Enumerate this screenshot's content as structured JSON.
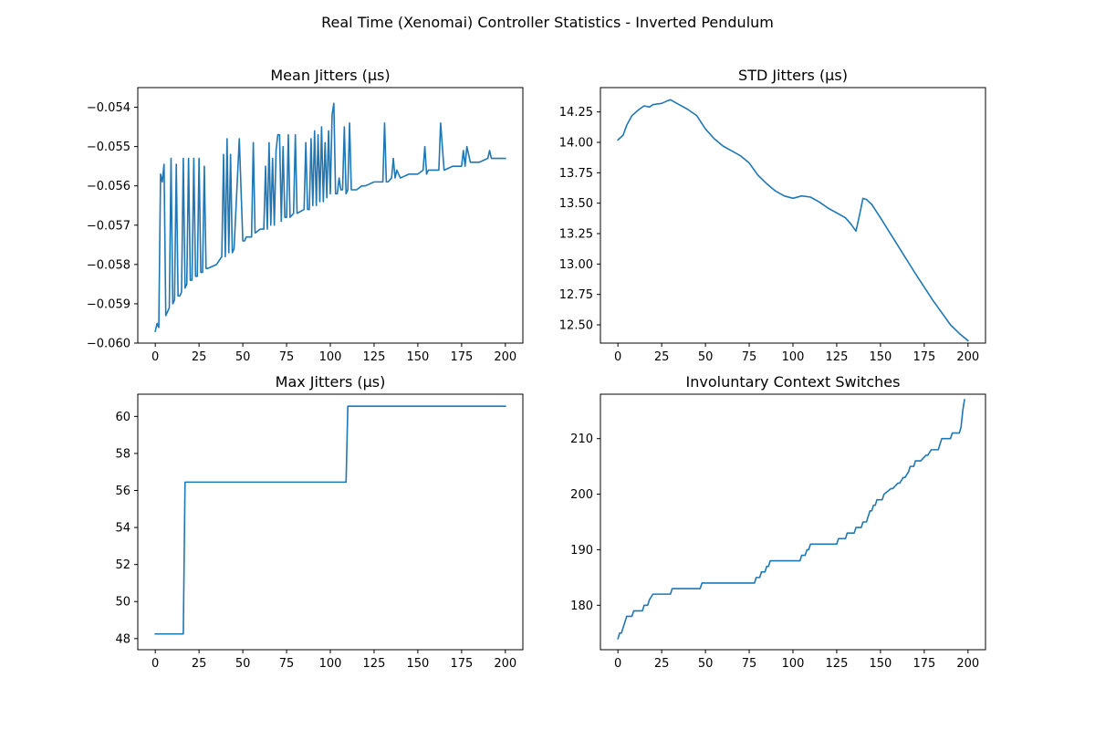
{
  "figure_title": "Real Time (Xenomai) Controller Statistics - Inverted Pendulum",
  "line_color": "#1f77b4",
  "chart_data": [
    {
      "type": "line",
      "title": "Mean Jitters (μs)",
      "xlim": [
        -10,
        210
      ],
      "ylim": [
        -0.06,
        -0.0535
      ],
      "xticks": [
        0,
        25,
        50,
        75,
        100,
        125,
        150,
        175,
        200
      ],
      "xtick_labels": [
        "0",
        "25",
        "50",
        "75",
        "100",
        "125",
        "150",
        "175",
        "200"
      ],
      "yticks": [
        -0.06,
        -0.059,
        -0.058,
        -0.057,
        -0.056,
        -0.055,
        -0.054
      ],
      "ytick_labels": [
        "−0.060",
        "−0.059",
        "−0.058",
        "−0.057",
        "−0.056",
        "−0.055",
        "−0.054"
      ],
      "series": [
        {
          "x": [
            0,
            1,
            2,
            3,
            4,
            5,
            6,
            7,
            8,
            9,
            10,
            11,
            12,
            13,
            14,
            15,
            16,
            17,
            18,
            19,
            20,
            21,
            22,
            23,
            24,
            25,
            26,
            27,
            28,
            29,
            30,
            35,
            38,
            39,
            40,
            41,
            42,
            43,
            44,
            45,
            48,
            50,
            51,
            52,
            53,
            54,
            55,
            56,
            57,
            60,
            62,
            63,
            64,
            65,
            66,
            67,
            68,
            69,
            70,
            71,
            72,
            73,
            74,
            75,
            76,
            77,
            79,
            80,
            81,
            85,
            86,
            87,
            88,
            89,
            90,
            91,
            92,
            93,
            94,
            95,
            96,
            97,
            98,
            99,
            100,
            101,
            102,
            103,
            104,
            105,
            106,
            107,
            108,
            109,
            110,
            111,
            112,
            113,
            115,
            118,
            120,
            125,
            130,
            131,
            132,
            133,
            135,
            136,
            137,
            138,
            140,
            145,
            147,
            148,
            150,
            153,
            154,
            155,
            156,
            160,
            162,
            163,
            165,
            170,
            175,
            176,
            177,
            178,
            180,
            185,
            190,
            191,
            192,
            195,
            200
          ],
          "y": [
            -0.0597,
            -0.0595,
            -0.0596,
            -0.0557,
            -0.0559,
            -0.05545,
            -0.0593,
            -0.0592,
            -0.0591,
            -0.0553,
            -0.059,
            -0.0589,
            -0.05545,
            -0.0588,
            -0.0588,
            -0.0587,
            -0.0553,
            -0.0586,
            -0.0585,
            -0.0553,
            -0.0584,
            -0.0584,
            -0.0553,
            -0.0583,
            -0.0583,
            -0.0553,
            -0.0582,
            -0.0582,
            -0.0555,
            -0.0581,
            -0.0581,
            -0.058,
            -0.0578,
            -0.0552,
            -0.0578,
            -0.0548,
            -0.0577,
            -0.0552,
            -0.0577,
            -0.0576,
            -0.0548,
            -0.0574,
            -0.0574,
            -0.0573,
            -0.0573,
            -0.0573,
            -0.0573,
            -0.0549,
            -0.0572,
            -0.0571,
            -0.0571,
            -0.0555,
            -0.0571,
            -0.0549,
            -0.057,
            -0.0553,
            -0.057,
            -0.0551,
            -0.0547,
            -0.0547,
            -0.0569,
            -0.055,
            -0.0568,
            -0.0568,
            -0.0547,
            -0.0568,
            -0.0567,
            -0.0547,
            -0.0567,
            -0.0566,
            -0.0549,
            -0.0566,
            -0.0566,
            -0.0548,
            -0.0565,
            -0.0546,
            -0.0565,
            -0.0547,
            -0.0564,
            -0.0545,
            -0.0564,
            -0.0549,
            -0.0563,
            -0.0546,
            -0.0562,
            -0.0542,
            -0.0539,
            -0.0562,
            -0.0562,
            -0.0558,
            -0.0561,
            -0.0561,
            -0.0545,
            -0.0562,
            -0.0561,
            -0.0544,
            -0.0561,
            -0.0561,
            -0.0561,
            -0.056,
            -0.056,
            -0.0559,
            -0.0559,
            -0.0544,
            -0.0559,
            -0.0559,
            -0.0558,
            -0.0553,
            -0.0558,
            -0.0556,
            -0.0558,
            -0.0557,
            -0.0557,
            -0.0557,
            -0.0557,
            -0.0556,
            -0.055,
            -0.0557,
            -0.0556,
            -0.0556,
            -0.0556,
            -0.0544,
            -0.0556,
            -0.0555,
            -0.0555,
            -0.0551,
            -0.0555,
            -0.055,
            -0.0554,
            -0.0554,
            -0.0553,
            -0.0551,
            -0.0553,
            -0.0553,
            -0.0553
          ]
        }
      ]
    },
    {
      "type": "line",
      "title": "STD Jitters (μs)",
      "xlim": [
        -10,
        210
      ],
      "ylim": [
        12.35,
        14.45
      ],
      "xticks": [
        0,
        25,
        50,
        75,
        100,
        125,
        150,
        175,
        200
      ],
      "xtick_labels": [
        "0",
        "25",
        "50",
        "75",
        "100",
        "125",
        "150",
        "175",
        "200"
      ],
      "yticks": [
        12.5,
        12.75,
        13.0,
        13.25,
        13.5,
        13.75,
        14.0,
        14.25
      ],
      "ytick_labels": [
        "12.50",
        "12.75",
        "13.00",
        "13.25",
        "13.50",
        "13.75",
        "14.00",
        "14.25"
      ],
      "series": [
        {
          "x": [
            0,
            3,
            5,
            8,
            12,
            15,
            18,
            20,
            25,
            28,
            30,
            35,
            40,
            45,
            50,
            55,
            60,
            65,
            70,
            75,
            80,
            85,
            90,
            95,
            100,
            105,
            110,
            115,
            120,
            125,
            130,
            133,
            136,
            138,
            140,
            142,
            145,
            150,
            160,
            170,
            180,
            190,
            195,
            200
          ],
          "y": [
            14.02,
            14.06,
            14.14,
            14.22,
            14.27,
            14.3,
            14.29,
            14.31,
            14.32,
            14.34,
            14.35,
            14.31,
            14.27,
            14.22,
            14.11,
            14.03,
            13.97,
            13.93,
            13.89,
            13.83,
            13.73,
            13.66,
            13.6,
            13.56,
            13.54,
            13.56,
            13.55,
            13.51,
            13.46,
            13.42,
            13.38,
            13.33,
            13.27,
            13.4,
            13.54,
            13.53,
            13.49,
            13.38,
            13.15,
            12.92,
            12.7,
            12.5,
            12.43,
            12.37
          ]
        }
      ]
    },
    {
      "type": "line",
      "title": "Max Jitters (μs)",
      "xlim": [
        -10,
        210
      ],
      "ylim": [
        47.4,
        61.2
      ],
      "xticks": [
        0,
        25,
        50,
        75,
        100,
        125,
        150,
        175,
        200
      ],
      "xtick_labels": [
        "0",
        "25",
        "50",
        "75",
        "100",
        "125",
        "150",
        "175",
        "200"
      ],
      "yticks": [
        48,
        50,
        52,
        54,
        56,
        58,
        60
      ],
      "ytick_labels": [
        "48",
        "50",
        "52",
        "54",
        "56",
        "58",
        "60"
      ],
      "series": [
        {
          "x": [
            0,
            16,
            17,
            109,
            110,
            200
          ],
          "y": [
            48.25,
            48.25,
            56.45,
            56.45,
            60.55,
            60.55
          ]
        }
      ]
    },
    {
      "type": "line",
      "title": "Involuntary Context Switches",
      "xlim": [
        -10,
        210
      ],
      "ylim": [
        172,
        218
      ],
      "xticks": [
        0,
        25,
        50,
        75,
        100,
        125,
        150,
        175,
        200
      ],
      "xtick_labels": [
        "0",
        "25",
        "50",
        "75",
        "100",
        "125",
        "150",
        "175",
        "200"
      ],
      "yticks": [
        180,
        190,
        200,
        210
      ],
      "ytick_labels": [
        "180",
        "190",
        "200",
        "210"
      ],
      "series": [
        {
          "x": [
            0,
            1,
            2,
            3,
            4,
            5,
            8,
            9,
            14,
            15,
            17,
            18,
            20,
            21,
            30,
            31,
            47,
            48,
            78,
            79,
            81,
            82,
            84,
            85,
            86,
            87,
            88,
            89,
            104,
            105,
            107,
            108,
            109,
            110,
            125,
            126,
            130,
            131,
            135,
            136,
            139,
            140,
            142,
            143,
            144,
            145,
            146,
            147,
            148,
            149,
            151,
            152,
            156,
            157,
            160,
            161,
            163,
            164,
            166,
            167,
            169,
            170,
            172,
            173,
            176,
            177,
            179,
            180,
            183,
            184,
            185,
            186,
            187,
            190,
            191,
            194,
            195,
            196,
            197,
            198
          ],
          "y": [
            174,
            175,
            175,
            176,
            177,
            178,
            178,
            179,
            179,
            180,
            180,
            181,
            182,
            182,
            182,
            183,
            183,
            184,
            184,
            185,
            185,
            186,
            186,
            187,
            187,
            188,
            188,
            188,
            188,
            189,
            189,
            190,
            190,
            191,
            191,
            192,
            192,
            193,
            193,
            194,
            194,
            195,
            195,
            196,
            197,
            197,
            198,
            198,
            199,
            199,
            199,
            200,
            201,
            201,
            202,
            202,
            203,
            203,
            204,
            205,
            205,
            206,
            206,
            206,
            207,
            207,
            208,
            208,
            208,
            209,
            210,
            210,
            210,
            210,
            211,
            211,
            211,
            212,
            215,
            217
          ]
        }
      ]
    }
  ]
}
